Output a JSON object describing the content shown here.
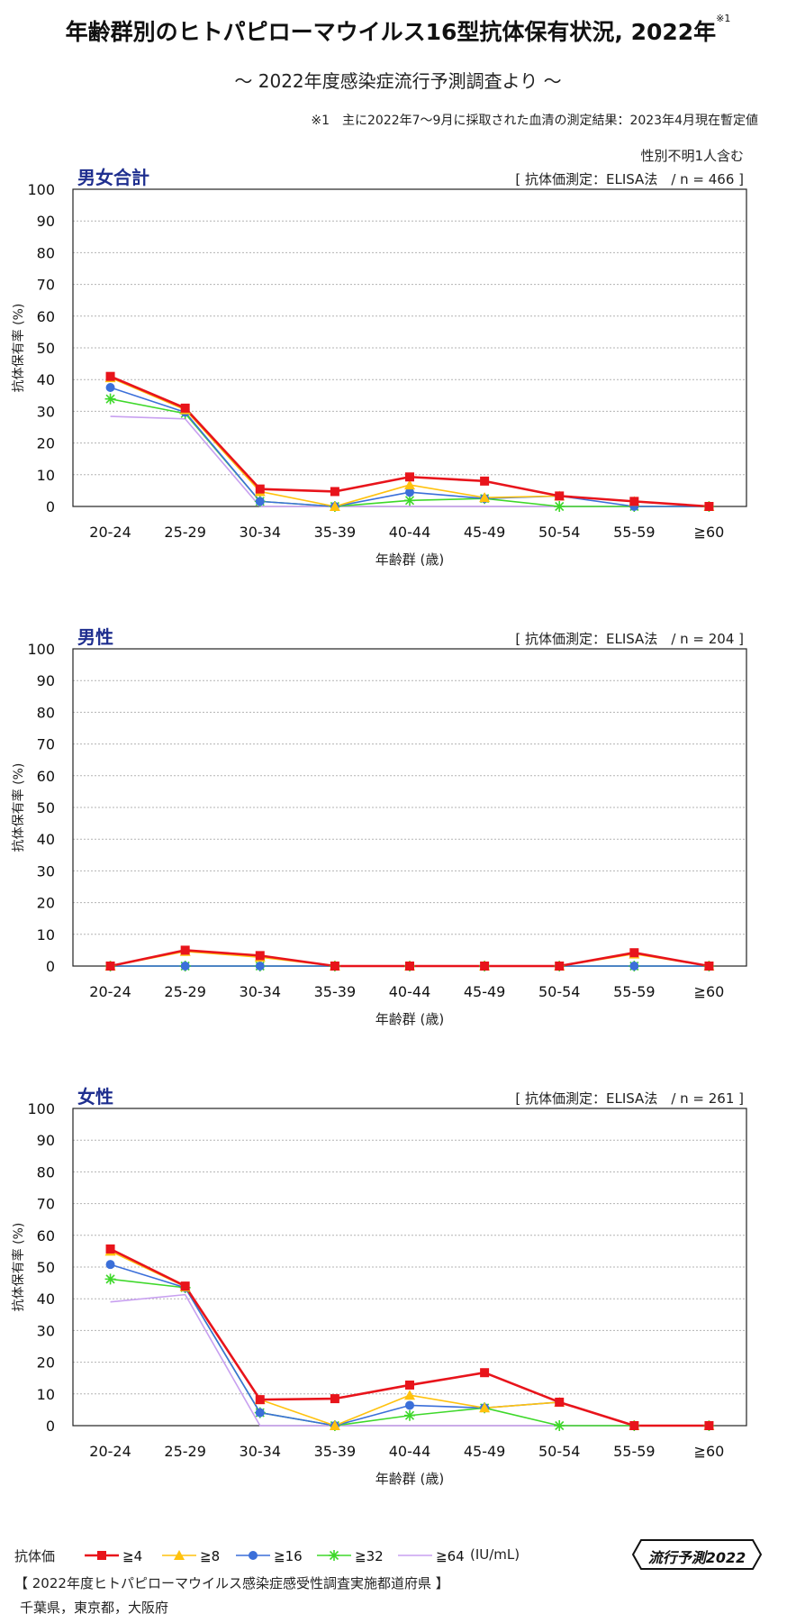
{
  "title": "年齢群別のヒトパピローマウイルス16型抗体保有状況, 2022年",
  "title_note_mark": "※1",
  "subtitle": "～ 2022年度感染症流行予測調査より ～",
  "note": "※1　主に2022年7～9月に採取された血清の測定結果：2023年4月現在暫定値",
  "unit_label": "(IU/mL)",
  "legend_label": "抗体価",
  "badge": "流行予測2022",
  "survey_title": "【 2022年度ヒトパピローマウイルス感染症感受性調査実施都道府県 】",
  "prefectures": "千葉県，東京都，大阪府",
  "colors": {
    "s4": "#e8141b",
    "s8": "#ffc20e",
    "s16": "#3b6fd9",
    "s32": "#3ed82a",
    "s64": "#c8a0f0"
  },
  "chart_data": [
    {
      "type": "line",
      "panel_title": "男女合計",
      "note": "性別不明1人含む",
      "method": "[ 抗体価測定：ELISA法　/ n = 466 ]",
      "xlabel": "年齢群 (歳)",
      "ylabel": "抗体保有率 (%)",
      "ylim": [
        0,
        100
      ],
      "yticks": [
        0,
        10,
        20,
        30,
        40,
        50,
        60,
        70,
        80,
        90,
        100
      ],
      "categories": [
        "20-24",
        "25-29",
        "30-34",
        "35-39",
        "40-44",
        "45-49",
        "50-54",
        "55-59",
        "≧60"
      ],
      "grid": true,
      "series": [
        {
          "name": "≧4",
          "color": "#e8141b",
          "marker": "square",
          "values": [
            41.0,
            31.0,
            5.5,
            4.7,
            9.3,
            8.0,
            3.3,
            1.6,
            0
          ]
        },
        {
          "name": "≧8",
          "color": "#ffc20e",
          "marker": "triangle",
          "values": [
            40.6,
            30.5,
            4.7,
            0,
            6.8,
            2.8,
            3.3,
            1.6,
            0
          ]
        },
        {
          "name": "≧16",
          "color": "#3b6fd9",
          "marker": "circle",
          "values": [
            37.5,
            29.7,
            1.6,
            0,
            4.5,
            2.5,
            3.3,
            0,
            0
          ]
        },
        {
          "name": "≧32",
          "color": "#3ed82a",
          "marker": "star",
          "values": [
            33.9,
            29.3,
            1.6,
            0,
            1.9,
            2.5,
            0,
            0,
            0
          ]
        },
        {
          "name": "≧64",
          "color": "#c8a0f0",
          "marker": "none",
          "values": [
            28.4,
            27.6,
            0,
            0,
            0,
            0,
            0,
            0,
            0
          ]
        }
      ]
    },
    {
      "type": "line",
      "panel_title": "男性",
      "note": "",
      "method": "[ 抗体価測定：ELISA法　/ n = 204 ]",
      "xlabel": "年齢群 (歳)",
      "ylabel": "抗体保有率 (%)",
      "ylim": [
        0,
        100
      ],
      "yticks": [
        0,
        10,
        20,
        30,
        40,
        50,
        60,
        70,
        80,
        90,
        100
      ],
      "categories": [
        "20-24",
        "25-29",
        "30-34",
        "35-39",
        "40-44",
        "45-49",
        "50-54",
        "55-59",
        "≧60"
      ],
      "grid": true,
      "series": [
        {
          "name": "≧4",
          "color": "#e8141b",
          "marker": "square",
          "values": [
            0,
            5.0,
            3.3,
            0,
            0,
            0,
            0,
            4.2,
            0
          ]
        },
        {
          "name": "≧8",
          "color": "#ffc20e",
          "marker": "triangle",
          "values": [
            0,
            4.6,
            2.8,
            0,
            0,
            0,
            0,
            3.8,
            0
          ]
        },
        {
          "name": "≧16",
          "color": "#3b6fd9",
          "marker": "circle",
          "values": [
            0,
            0,
            0,
            0,
            0,
            0,
            0,
            0,
            0
          ]
        },
        {
          "name": "≧32",
          "color": "#3ed82a",
          "marker": "star",
          "values": [
            0,
            0,
            0,
            0,
            0,
            0,
            0,
            0,
            0
          ]
        },
        {
          "name": "≧64",
          "color": "#c8a0f0",
          "marker": "none",
          "values": [
            0,
            0,
            0,
            0,
            0,
            0,
            0,
            0,
            0
          ]
        }
      ]
    },
    {
      "type": "line",
      "panel_title": "女性",
      "note": "",
      "method": "[ 抗体価測定：ELISA法　/ n = 261 ]",
      "xlabel": "年齢群 (歳)",
      "ylabel": "抗体保有率 (%)",
      "ylim": [
        0,
        100
      ],
      "yticks": [
        0,
        10,
        20,
        30,
        40,
        50,
        60,
        70,
        80,
        90,
        100
      ],
      "categories": [
        "20-24",
        "25-29",
        "30-34",
        "35-39",
        "40-44",
        "45-49",
        "50-54",
        "55-59",
        "≧60"
      ],
      "grid": true,
      "series": [
        {
          "name": "≧4",
          "color": "#e8141b",
          "marker": "square",
          "values": [
            55.7,
            44.0,
            8.2,
            8.5,
            12.8,
            16.7,
            7.4,
            0,
            0
          ]
        },
        {
          "name": "≧8",
          "color": "#ffc20e",
          "marker": "triangle",
          "values": [
            55.0,
            43.8,
            8.2,
            0,
            9.6,
            5.6,
            7.4,
            0,
            0
          ]
        },
        {
          "name": "≧16",
          "color": "#3b6fd9",
          "marker": "circle",
          "values": [
            50.8,
            43.5,
            4.1,
            0,
            6.4,
            5.6,
            7.4,
            0,
            0
          ]
        },
        {
          "name": "≧32",
          "color": "#3ed82a",
          "marker": "star",
          "values": [
            46.2,
            43.5,
            4.1,
            0,
            3.2,
            5.6,
            0,
            0,
            0
          ]
        },
        {
          "name": "≧64",
          "color": "#c8a0f0",
          "marker": "none",
          "values": [
            39.0,
            41.3,
            0,
            0,
            0,
            0,
            0,
            0,
            0
          ]
        }
      ]
    }
  ]
}
